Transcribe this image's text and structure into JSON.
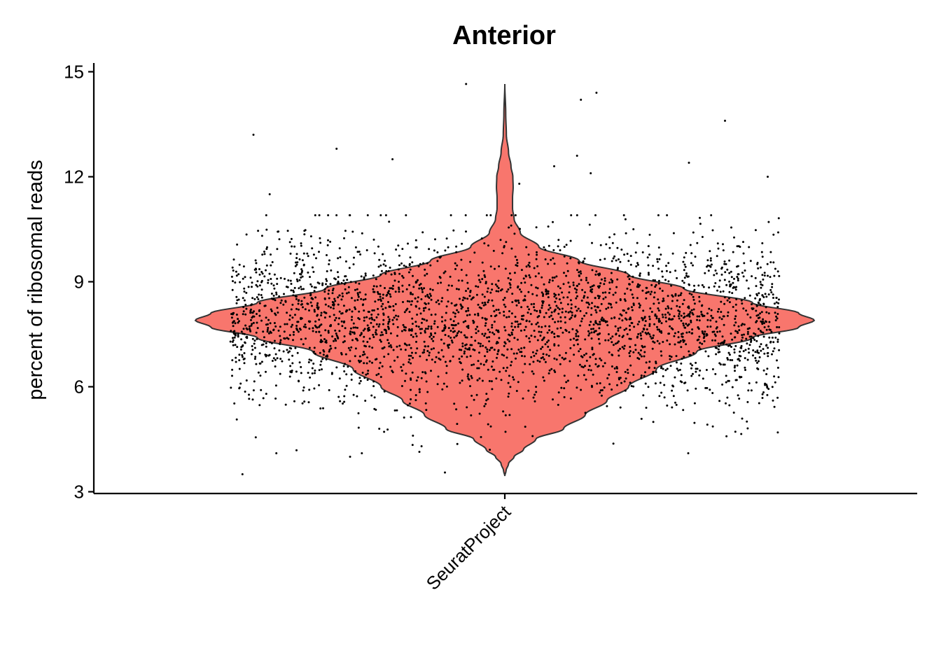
{
  "chart_data": {
    "type": "violin",
    "title": "Anterior",
    "xlabel": "",
    "ylabel": "percent of ribosomal reads",
    "categories": [
      "SeuratProject"
    ],
    "ylim": [
      2.95,
      15.25
    ],
    "yticks": [
      3,
      6,
      9,
      12,
      15
    ],
    "grid": false,
    "legend": "none",
    "fill_color": "#F8766D",
    "outline_color": "#333333",
    "point_color": "#000000",
    "violin": {
      "min": 3.45,
      "max": 14.65,
      "mode": 7.9,
      "density_profile": [
        [
          3.45,
          0.0
        ],
        [
          3.6,
          0.004
        ],
        [
          3.8,
          0.012
        ],
        [
          4.0,
          0.03
        ],
        [
          4.2,
          0.06
        ],
        [
          4.5,
          0.1
        ],
        [
          4.8,
          0.19
        ],
        [
          5.2,
          0.26
        ],
        [
          5.6,
          0.33
        ],
        [
          6.0,
          0.4
        ],
        [
          6.5,
          0.49
        ],
        [
          7.0,
          0.62
        ],
        [
          7.4,
          0.8
        ],
        [
          7.7,
          0.95
        ],
        [
          7.9,
          1.0
        ],
        [
          8.1,
          0.95
        ],
        [
          8.4,
          0.8
        ],
        [
          8.8,
          0.58
        ],
        [
          9.2,
          0.4
        ],
        [
          9.6,
          0.24
        ],
        [
          10.0,
          0.11
        ],
        [
          10.4,
          0.05
        ],
        [
          10.8,
          0.03
        ],
        [
          11.1,
          0.025
        ],
        [
          11.4,
          0.025
        ],
        [
          11.7,
          0.027
        ],
        [
          12.0,
          0.026
        ],
        [
          12.3,
          0.02
        ],
        [
          12.7,
          0.012
        ],
        [
          13.2,
          0.005
        ],
        [
          13.8,
          0.003
        ],
        [
          14.65,
          0.0
        ]
      ]
    },
    "points": {
      "n": 3000,
      "center": 7.9,
      "spread_sd": 1.25,
      "outliers_above": [
        11.5,
        11.8,
        12.0,
        12.1,
        12.3,
        12.4,
        12.5,
        12.6,
        12.8,
        13.2,
        13.6,
        14.2,
        14.4,
        14.65
      ],
      "outliers_below": [
        3.5,
        3.55,
        4.0,
        4.2,
        4.3
      ]
    }
  }
}
